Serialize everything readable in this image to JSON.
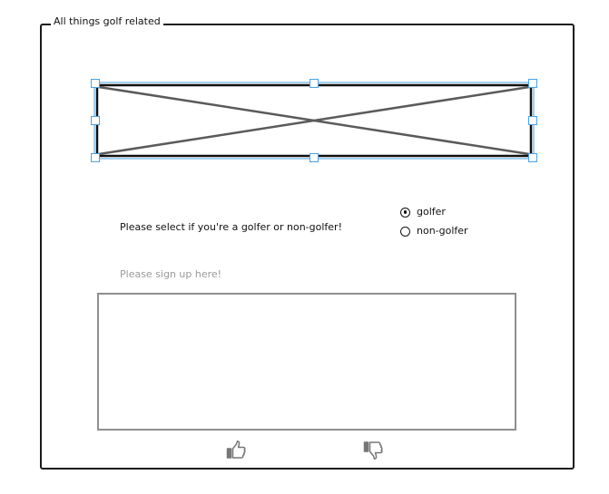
{
  "groupbox": {
    "title": "All things golf related"
  },
  "image_placeholder": {
    "selected": true,
    "accent_color": "#4aa3e6"
  },
  "question": {
    "text": "Please select if you're a golfer or non-golfer!"
  },
  "radio_options": [
    {
      "label": "golfer",
      "selected": true
    },
    {
      "label": "non-golfer",
      "selected": false
    }
  ],
  "signup": {
    "label": "Please sign up here!",
    "value": ""
  },
  "feedback": {
    "like_icon": "thumbs-up-icon",
    "dislike_icon": "thumbs-down-icon",
    "icon_color": "#777777"
  }
}
